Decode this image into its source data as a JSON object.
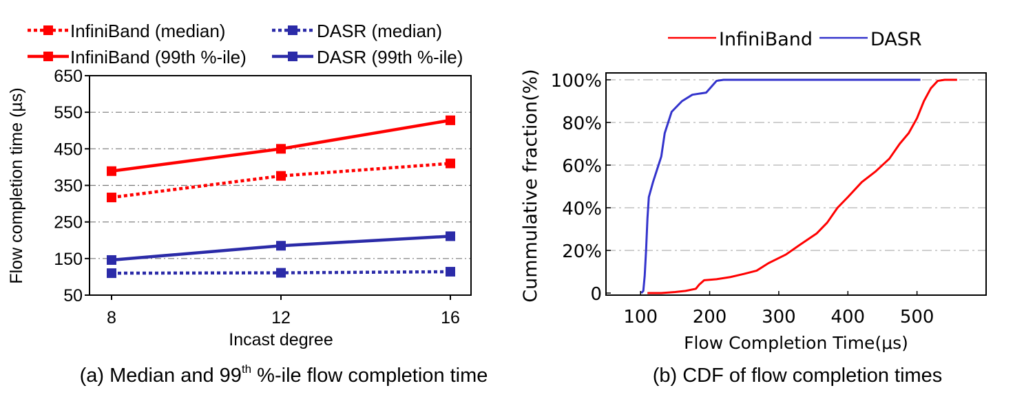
{
  "chart_data": [
    {
      "type": "line",
      "caption": {
        "prefix": "(a) Median and 99",
        "superscript": "th",
        "suffix": " %-ile flow completion time"
      },
      "xlabel": "Incast degree",
      "ylabel": "Flow completion time (µs)",
      "x": [
        8,
        12,
        16
      ],
      "x_ticks": [
        "8",
        "12",
        "16"
      ],
      "ylim": [
        50,
        650
      ],
      "y_ticks": [
        "50",
        "150",
        "250",
        "350",
        "450",
        "550",
        "650"
      ],
      "grid": "horizontal dash-dot",
      "legend_position": "top",
      "series": [
        {
          "name": "InfiniBand (median)",
          "color": "#ff0000",
          "style": "dotted",
          "marker": "square",
          "values": [
            317,
            376,
            410
          ]
        },
        {
          "name": "DASR (median)",
          "color": "#2b2ba8",
          "style": "dotted",
          "marker": "square",
          "values": [
            110,
            111,
            114
          ]
        },
        {
          "name": "InfiniBand (99th %-ile)",
          "color": "#ff0000",
          "style": "solid",
          "marker": "square",
          "values": [
            389,
            450,
            528
          ]
        },
        {
          "name": "DASR (99th %-ile)",
          "color": "#2b2ba8",
          "style": "solid",
          "marker": "square",
          "values": [
            146,
            185,
            211
          ]
        }
      ]
    },
    {
      "type": "line",
      "caption": "(b) CDF of flow completion times",
      "xlabel": "Flow Completion Time(μs)",
      "ylabel": "Cummulative fraction(%)",
      "xlim": [
        50,
        600
      ],
      "x_ticks": [
        "100",
        "200",
        "300",
        "400",
        "500"
      ],
      "x_tick_values": [
        100,
        200,
        300,
        400,
        500
      ],
      "ylim": [
        0,
        100
      ],
      "y_ticks": [
        "0",
        "20%",
        "40%",
        "60%",
        "80%",
        "100%"
      ],
      "grid": "horizontal dash-dot",
      "legend_position": "top",
      "series": [
        {
          "name": "InfiniBand",
          "color": "#ff0000",
          "points": [
            [
              110,
              0
            ],
            [
              130,
              0
            ],
            [
              150,
              0.5
            ],
            [
              165,
              1
            ],
            [
              180,
              2
            ],
            [
              185,
              4
            ],
            [
              192,
              6
            ],
            [
              210,
              6.5
            ],
            [
              230,
              7.5
            ],
            [
              250,
              9
            ],
            [
              268,
              10.5
            ],
            [
              285,
              14
            ],
            [
              310,
              18
            ],
            [
              330,
              22.5
            ],
            [
              355,
              28
            ],
            [
              370,
              33
            ],
            [
              385,
              40
            ],
            [
              400,
              45
            ],
            [
              420,
              52
            ],
            [
              440,
              57
            ],
            [
              460,
              63
            ],
            [
              475,
              70
            ],
            [
              488,
              75
            ],
            [
              500,
              82
            ],
            [
              510,
              90
            ],
            [
              520,
              96
            ],
            [
              530,
              99.5
            ],
            [
              540,
              100
            ],
            [
              558,
              100
            ]
          ]
        },
        {
          "name": "DASR",
          "color": "#3333cc",
          "points": [
            [
              101,
              0
            ],
            [
              104,
              1
            ],
            [
              106,
              8
            ],
            [
              108,
              20
            ],
            [
              110,
              35
            ],
            [
              112,
              45
            ],
            [
              118,
              52
            ],
            [
              126,
              60
            ],
            [
              130,
              64
            ],
            [
              135,
              75
            ],
            [
              145,
              85
            ],
            [
              160,
              90
            ],
            [
              175,
              93
            ],
            [
              195,
              94
            ],
            [
              210,
              99.5
            ],
            [
              220,
              100
            ],
            [
              505,
              100
            ]
          ]
        }
      ]
    }
  ]
}
